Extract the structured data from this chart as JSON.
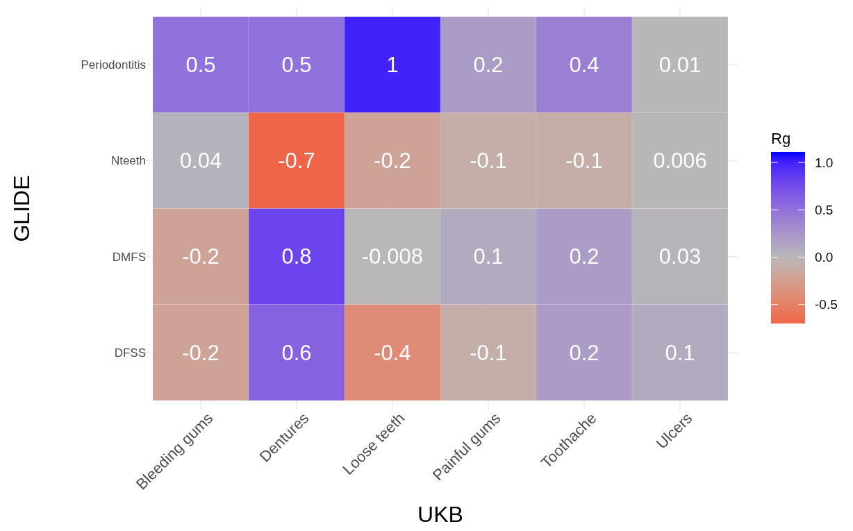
{
  "chart_data": {
    "type": "heatmap",
    "xlabel": "UKB",
    "ylabel": "GLIDE",
    "clabel": "Rg",
    "categories": [
      "Bleeding gums",
      "Dentures",
      "Loose teeth",
      "Painful gums",
      "Toothache",
      "Ulcers"
    ],
    "y_categories": [
      "Periodontitis",
      "Nteeth",
      "DMFS",
      "DFSS"
    ],
    "cells": [
      [
        0.5,
        0.5,
        1,
        0.2,
        0.4,
        0.01
      ],
      [
        0.04,
        -0.7,
        -0.2,
        -0.1,
        -0.1,
        0.006
      ],
      [
        -0.2,
        0.8,
        -0.008,
        0.1,
        0.2,
        0.03
      ],
      [
        -0.2,
        0.6,
        -0.4,
        -0.1,
        0.2,
        0.1
      ]
    ],
    "clim": [
      -0.7,
      1.11
    ],
    "cticks": [
      {
        "value": -0.5,
        "label": "-0.5"
      },
      {
        "value": 0,
        "label": "0.0"
      },
      {
        "value": 0.5,
        "label": "0.5"
      },
      {
        "value": 1,
        "label": "1.0"
      }
    ],
    "data_labels": true,
    "grid": true
  }
}
